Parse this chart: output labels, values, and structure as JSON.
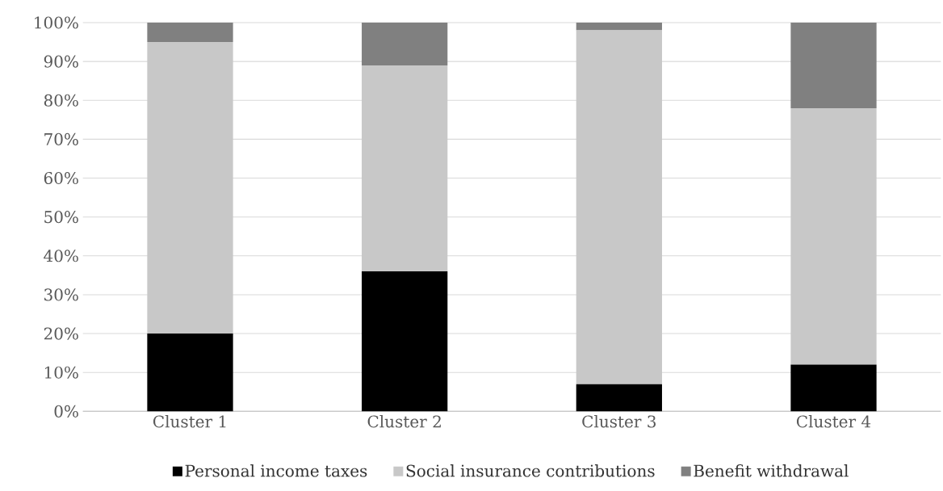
{
  "chart_data": {
    "type": "bar",
    "stacked": true,
    "categories": [
      "Cluster 1",
      "Cluster 2",
      "Cluster 3",
      "Cluster 4"
    ],
    "series": [
      {
        "name": "Personal income taxes",
        "color": "#000000",
        "values": [
          20,
          36,
          7,
          12
        ]
      },
      {
        "name": "Social insurance contributions",
        "color": "#c8c8c8",
        "values": [
          75,
          53,
          91,
          66
        ]
      },
      {
        "name": "Benefit withdrawal",
        "color": "#808080",
        "values": [
          5,
          11,
          2,
          22
        ]
      }
    ],
    "ylim": [
      0,
      100
    ],
    "yticks": [
      {
        "value": 0,
        "label": "0%"
      },
      {
        "value": 10,
        "label": "10%"
      },
      {
        "value": 20,
        "label": "20%"
      },
      {
        "value": 30,
        "label": "30%"
      },
      {
        "value": 40,
        "label": "40%"
      },
      {
        "value": 50,
        "label": "50%"
      },
      {
        "value": 60,
        "label": "60%"
      },
      {
        "value": 70,
        "label": "70%"
      },
      {
        "value": 80,
        "label": "80%"
      },
      {
        "value": 90,
        "label": "90%"
      },
      {
        "value": 100,
        "label": "100%"
      }
    ],
    "grid": "y",
    "legend": "bottom"
  }
}
